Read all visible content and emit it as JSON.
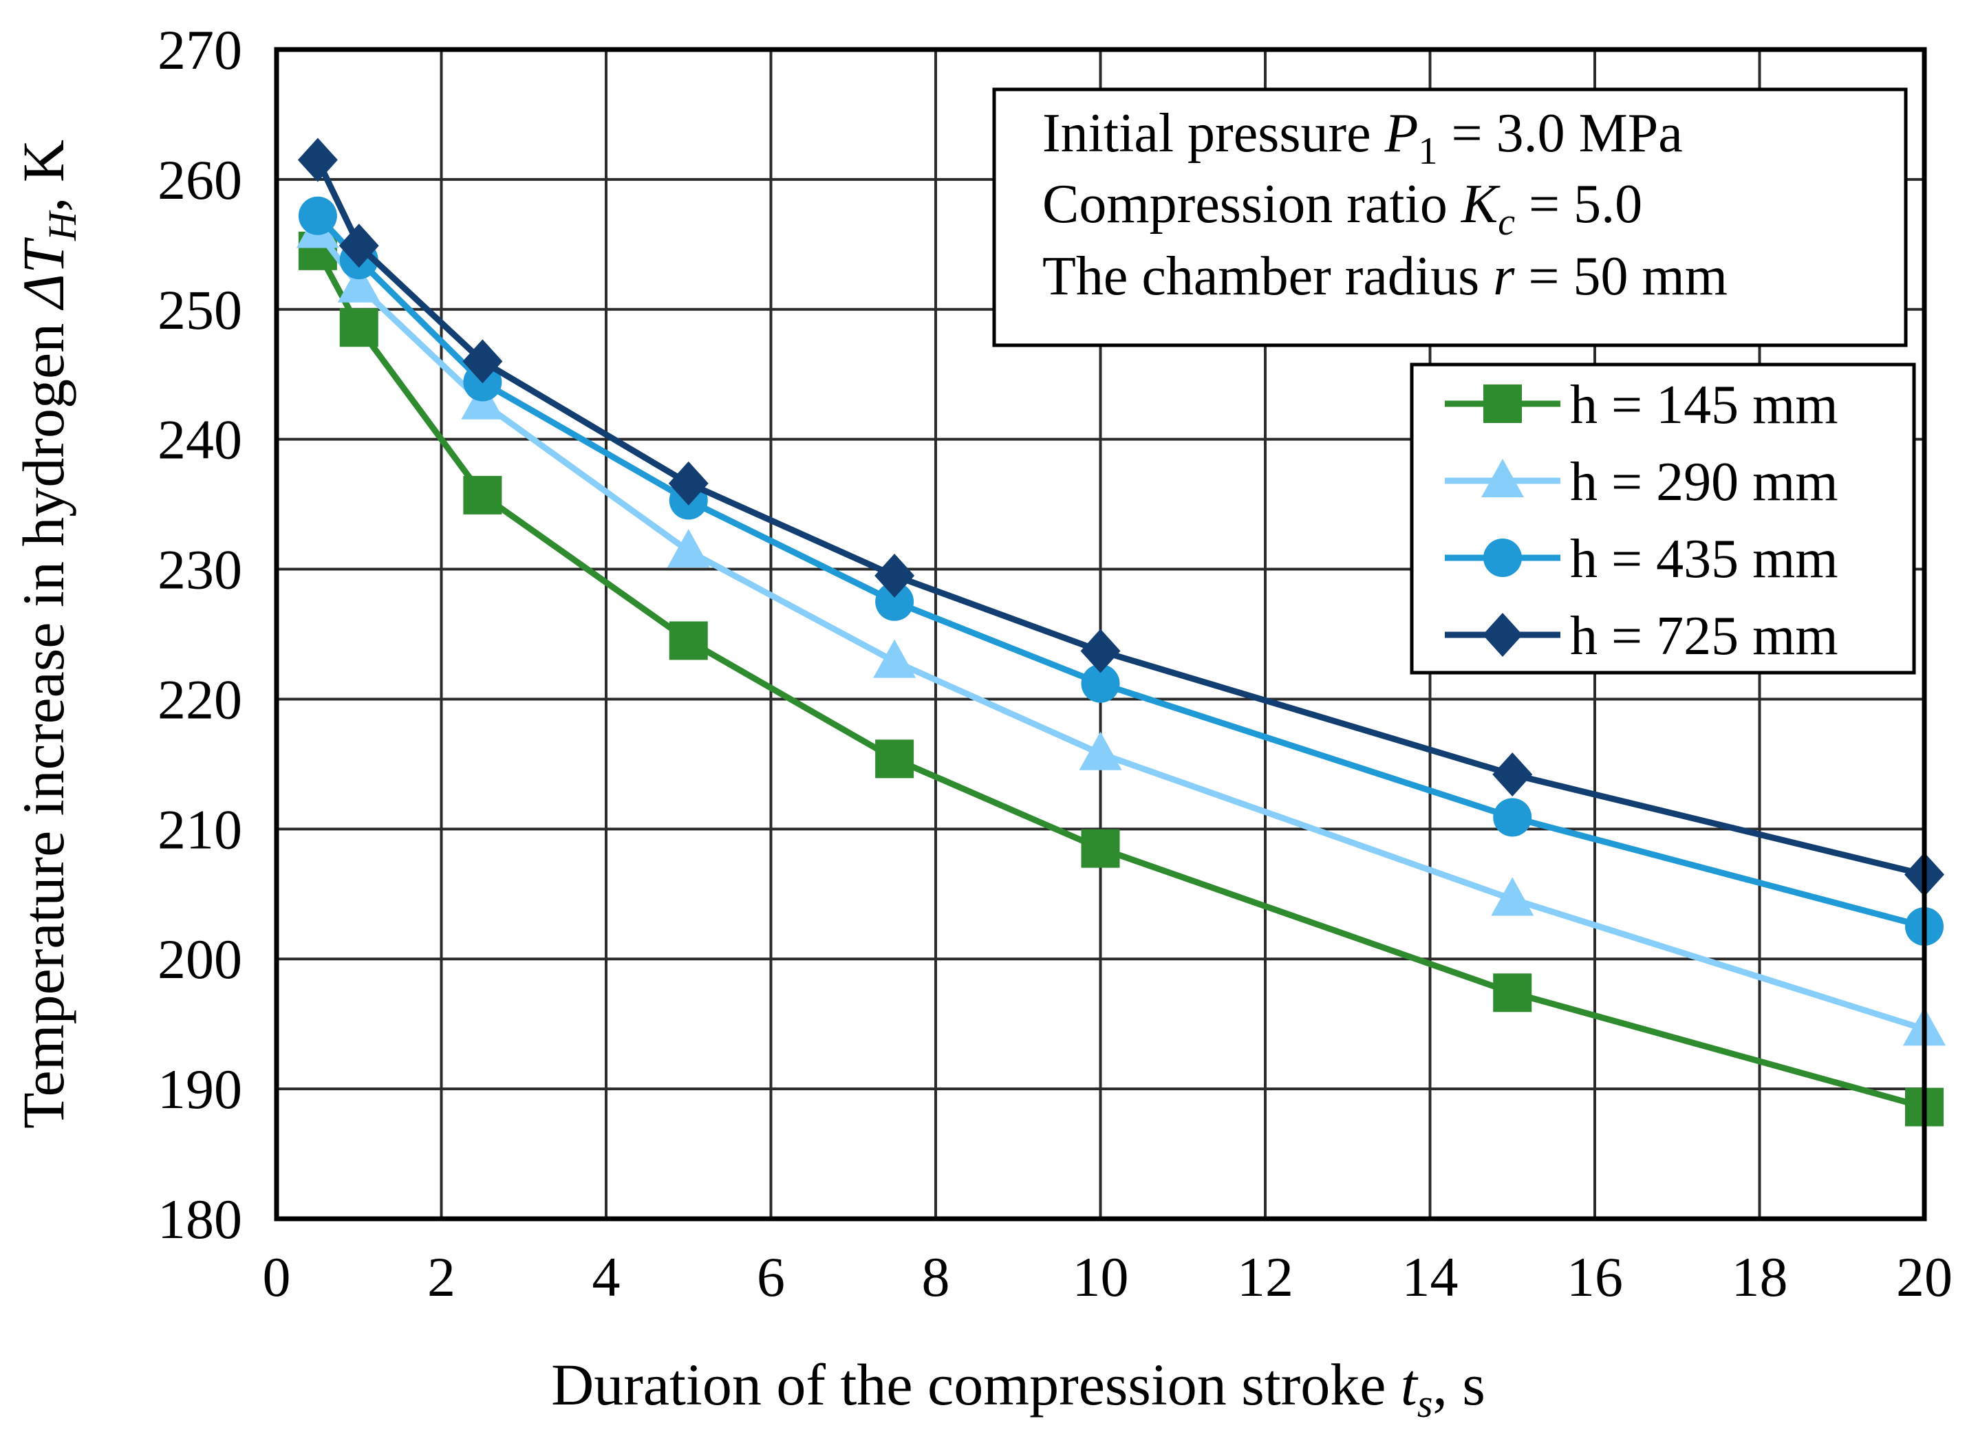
{
  "chart_data": {
    "type": "line",
    "xlabel": {
      "text": "Duration of the compression stroke ",
      "sym": "t",
      "sub": "s",
      "unit": ", s"
    },
    "ylabel": {
      "text": "Temperature increase in hydrogen ",
      "sym": "ΔT",
      "sub": "H",
      "unit": ", K"
    },
    "xlim": [
      0,
      20
    ],
    "ylim": [
      180,
      270
    ],
    "xticks": [
      0,
      2,
      4,
      6,
      8,
      10,
      12,
      14,
      16,
      18,
      20
    ],
    "yticks": [
      180,
      190,
      200,
      210,
      220,
      230,
      240,
      250,
      260,
      270
    ],
    "grid": true,
    "x": [
      0.5,
      1,
      2.5,
      5,
      7.5,
      10,
      15,
      20
    ],
    "annotation": {
      "line1": {
        "pre": "Initial pressure ",
        "sym": "P",
        "sub": "1",
        "post": " = 3.0 MPa"
      },
      "line2": {
        "pre": "Compression ratio ",
        "sym": "K",
        "sub": "c",
        "post": " = 5.0"
      },
      "line3": {
        "pre": "The chamber radius ",
        "sym": "r",
        "sub": "",
        "post": " = 50 mm"
      }
    },
    "legend_position": "right",
    "series": [
      {
        "name": "h = 145 mm",
        "color": "#2e8b2e",
        "marker": "square",
        "values": [
          254.5,
          248.6,
          235.7,
          224.5,
          215.4,
          208.5,
          197.4,
          188.6
        ]
      },
      {
        "name": "h = 290 mm",
        "color": "#87cefa",
        "marker": "triangle",
        "values": [
          256.0,
          251.8,
          242.8,
          231.4,
          222.9,
          215.8,
          204.6,
          194.6
        ]
      },
      {
        "name": "h = 435 mm",
        "color": "#1f9ad6",
        "marker": "circle",
        "values": [
          257.2,
          253.8,
          244.4,
          235.3,
          227.5,
          221.2,
          210.9,
          202.5
        ]
      },
      {
        "name": "h = 725 mm",
        "color": "#123e72",
        "marker": "diamond",
        "values": [
          261.5,
          254.9,
          246.0,
          236.6,
          229.5,
          223.7,
          214.2,
          206.5
        ]
      }
    ]
  }
}
